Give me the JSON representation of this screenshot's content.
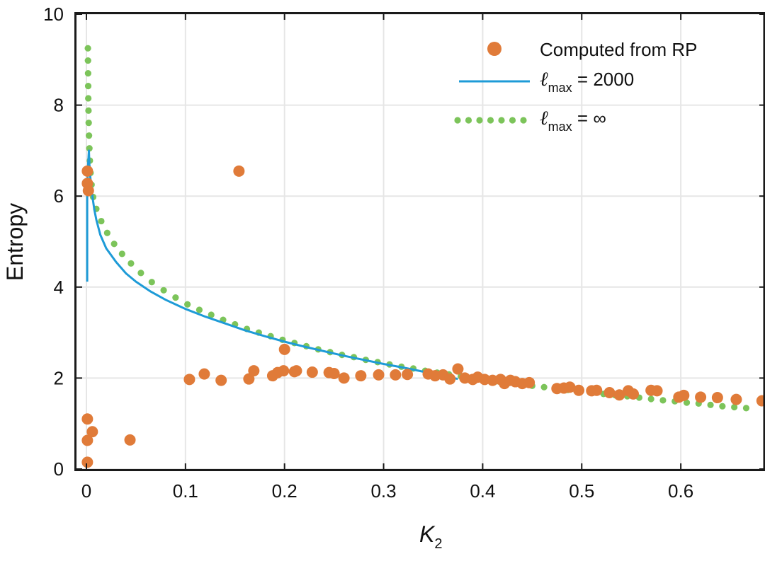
{
  "chart_data": {
    "type": "scatter",
    "xlabel_main": "K",
    "xlabel_sub": "2",
    "ylabel": "Entropy",
    "xlim": [
      -0.01,
      0.685
    ],
    "ylim": [
      0,
      10
    ],
    "xticks": [
      0,
      0.1,
      0.2,
      0.3,
      0.4,
      0.5,
      0.6
    ],
    "xtick_labels": [
      "0",
      "0.1",
      "0.2",
      "0.3",
      "0.4",
      "0.5",
      "0.6"
    ],
    "yticks": [
      0,
      2,
      4,
      6,
      8,
      10
    ],
    "ytick_labels": [
      "0",
      "2",
      "4",
      "6",
      "8",
      "10"
    ],
    "grid": true,
    "legend_position": "top-right",
    "colors": {
      "computed": "#E07B39",
      "lmax_2000": "#1E9BD7",
      "lmax_inf": "#7CC45A",
      "axes": "#1a1a1a",
      "grid": "#e6e6e6"
    },
    "legend": {
      "computed_label": "Computed from RP",
      "lmax_2000_symbol": "ℓ",
      "lmax_2000_sub": "max",
      "lmax_2000_rest": " =  2000",
      "lmax_inf_symbol": "ℓ",
      "lmax_inf_sub": "max",
      "lmax_inf_rest": " = ∞"
    },
    "series": [
      {
        "key": "computed",
        "style": "markers",
        "points": [
          [
            0.001,
            0.15
          ],
          [
            0.001,
            0.63
          ],
          [
            0.001,
            1.1
          ],
          [
            0.006,
            0.82
          ],
          [
            0.044,
            0.64
          ],
          [
            0.001,
            6.55
          ],
          [
            0.001,
            6.28
          ],
          [
            0.002,
            6.12
          ],
          [
            0.154,
            6.55
          ],
          [
            0.2,
            2.63
          ],
          [
            0.104,
            1.97
          ],
          [
            0.119,
            2.09
          ],
          [
            0.136,
            1.95
          ],
          [
            0.164,
            1.98
          ],
          [
            0.169,
            2.16
          ],
          [
            0.188,
            2.05
          ],
          [
            0.193,
            2.12
          ],
          [
            0.199,
            2.16
          ],
          [
            0.21,
            2.14
          ],
          [
            0.212,
            2.16
          ],
          [
            0.228,
            2.13
          ],
          [
            0.245,
            2.12
          ],
          [
            0.25,
            2.1
          ],
          [
            0.26,
            2.0
          ],
          [
            0.277,
            2.05
          ],
          [
            0.295,
            2.07
          ],
          [
            0.312,
            2.07
          ],
          [
            0.324,
            2.08
          ],
          [
            0.345,
            2.09
          ],
          [
            0.352,
            2.05
          ],
          [
            0.36,
            2.07
          ],
          [
            0.367,
            1.98
          ],
          [
            0.375,
            2.2
          ],
          [
            0.382,
            2.0
          ],
          [
            0.39,
            1.97
          ],
          [
            0.395,
            2.02
          ],
          [
            0.402,
            1.97
          ],
          [
            0.41,
            1.95
          ],
          [
            0.418,
            1.97
          ],
          [
            0.422,
            1.88
          ],
          [
            0.428,
            1.95
          ],
          [
            0.433,
            1.92
          ],
          [
            0.44,
            1.88
          ],
          [
            0.447,
            1.9
          ],
          [
            0.475,
            1.77
          ],
          [
            0.482,
            1.78
          ],
          [
            0.488,
            1.8
          ],
          [
            0.497,
            1.73
          ],
          [
            0.51,
            1.72
          ],
          [
            0.515,
            1.73
          ],
          [
            0.528,
            1.68
          ],
          [
            0.538,
            1.63
          ],
          [
            0.547,
            1.72
          ],
          [
            0.552,
            1.65
          ],
          [
            0.57,
            1.73
          ],
          [
            0.576,
            1.72
          ],
          [
            0.598,
            1.58
          ],
          [
            0.603,
            1.62
          ],
          [
            0.62,
            1.58
          ],
          [
            0.637,
            1.57
          ],
          [
            0.656,
            1.53
          ],
          [
            0.682,
            1.5
          ]
        ]
      },
      {
        "key": "lmax_2000",
        "style": "line",
        "points": [
          [
            0.0008,
            4.12
          ],
          [
            0.0008,
            6.1
          ],
          [
            0.0015,
            6.6
          ],
          [
            0.0025,
            7.0
          ],
          [
            0.003,
            6.7
          ],
          [
            0.004,
            6.4
          ],
          [
            0.006,
            6.0
          ],
          [
            0.008,
            5.7
          ],
          [
            0.01,
            5.48
          ],
          [
            0.014,
            5.15
          ],
          [
            0.02,
            4.85
          ],
          [
            0.03,
            4.55
          ],
          [
            0.04,
            4.3
          ],
          [
            0.05,
            4.12
          ],
          [
            0.065,
            3.9
          ],
          [
            0.08,
            3.72
          ],
          [
            0.1,
            3.52
          ],
          [
            0.12,
            3.35
          ],
          [
            0.14,
            3.2
          ],
          [
            0.16,
            3.05
          ],
          [
            0.18,
            2.92
          ],
          [
            0.2,
            2.8
          ],
          [
            0.22,
            2.69
          ],
          [
            0.24,
            2.59
          ],
          [
            0.26,
            2.49
          ],
          [
            0.28,
            2.4
          ],
          [
            0.3,
            2.31
          ],
          [
            0.32,
            2.23
          ],
          [
            0.34,
            2.14
          ],
          [
            0.36,
            2.05
          ],
          [
            0.375,
            1.98
          ]
        ]
      },
      {
        "key": "lmax_inf",
        "style": "dots",
        "points": [
          [
            0.0015,
            9.25
          ],
          [
            0.0016,
            8.98
          ],
          [
            0.0017,
            8.7
          ],
          [
            0.0018,
            8.42
          ],
          [
            0.0019,
            8.15
          ],
          [
            0.0021,
            7.88
          ],
          [
            0.0023,
            7.61
          ],
          [
            0.0026,
            7.33
          ],
          [
            0.003,
            7.05
          ],
          [
            0.0035,
            6.78
          ],
          [
            0.0042,
            6.51
          ],
          [
            0.0052,
            6.25
          ],
          [
            0.0068,
            5.98
          ],
          [
            0.01,
            5.72
          ],
          [
            0.015,
            5.45
          ],
          [
            0.021,
            5.19
          ],
          [
            0.028,
            4.95
          ],
          [
            0.036,
            4.73
          ],
          [
            0.045,
            4.52
          ],
          [
            0.055,
            4.31
          ],
          [
            0.066,
            4.11
          ],
          [
            0.078,
            3.93
          ],
          [
            0.09,
            3.77
          ],
          [
            0.102,
            3.62
          ],
          [
            0.114,
            3.5
          ],
          [
            0.126,
            3.39
          ],
          [
            0.138,
            3.28
          ],
          [
            0.15,
            3.18
          ],
          [
            0.162,
            3.08
          ],
          [
            0.174,
            3.0
          ],
          [
            0.186,
            2.92
          ],
          [
            0.198,
            2.84
          ],
          [
            0.21,
            2.77
          ],
          [
            0.222,
            2.7
          ],
          [
            0.234,
            2.63
          ],
          [
            0.246,
            2.57
          ],
          [
            0.258,
            2.51
          ],
          [
            0.27,
            2.46
          ],
          [
            0.282,
            2.4
          ],
          [
            0.294,
            2.35
          ],
          [
            0.306,
            2.3
          ],
          [
            0.318,
            2.25
          ],
          [
            0.33,
            2.21
          ],
          [
            0.342,
            2.16
          ],
          [
            0.354,
            2.12
          ],
          [
            0.366,
            2.08
          ],
          [
            0.378,
            2.04
          ],
          [
            0.39,
            2.0
          ],
          [
            0.402,
            1.97
          ],
          [
            0.414,
            1.93
          ],
          [
            0.426,
            1.89
          ],
          [
            0.438,
            1.86
          ],
          [
            0.45,
            1.83
          ],
          [
            0.462,
            1.8
          ],
          [
            0.474,
            1.77
          ],
          [
            0.486,
            1.74
          ],
          [
            0.498,
            1.71
          ],
          [
            0.51,
            1.68
          ],
          [
            0.522,
            1.65
          ],
          [
            0.534,
            1.62
          ],
          [
            0.546,
            1.6
          ],
          [
            0.558,
            1.57
          ],
          [
            0.57,
            1.54
          ],
          [
            0.582,
            1.51
          ],
          [
            0.594,
            1.49
          ],
          [
            0.606,
            1.46
          ],
          [
            0.618,
            1.44
          ],
          [
            0.63,
            1.41
          ],
          [
            0.642,
            1.38
          ],
          [
            0.654,
            1.36
          ],
          [
            0.666,
            1.34
          ]
        ]
      }
    ]
  }
}
